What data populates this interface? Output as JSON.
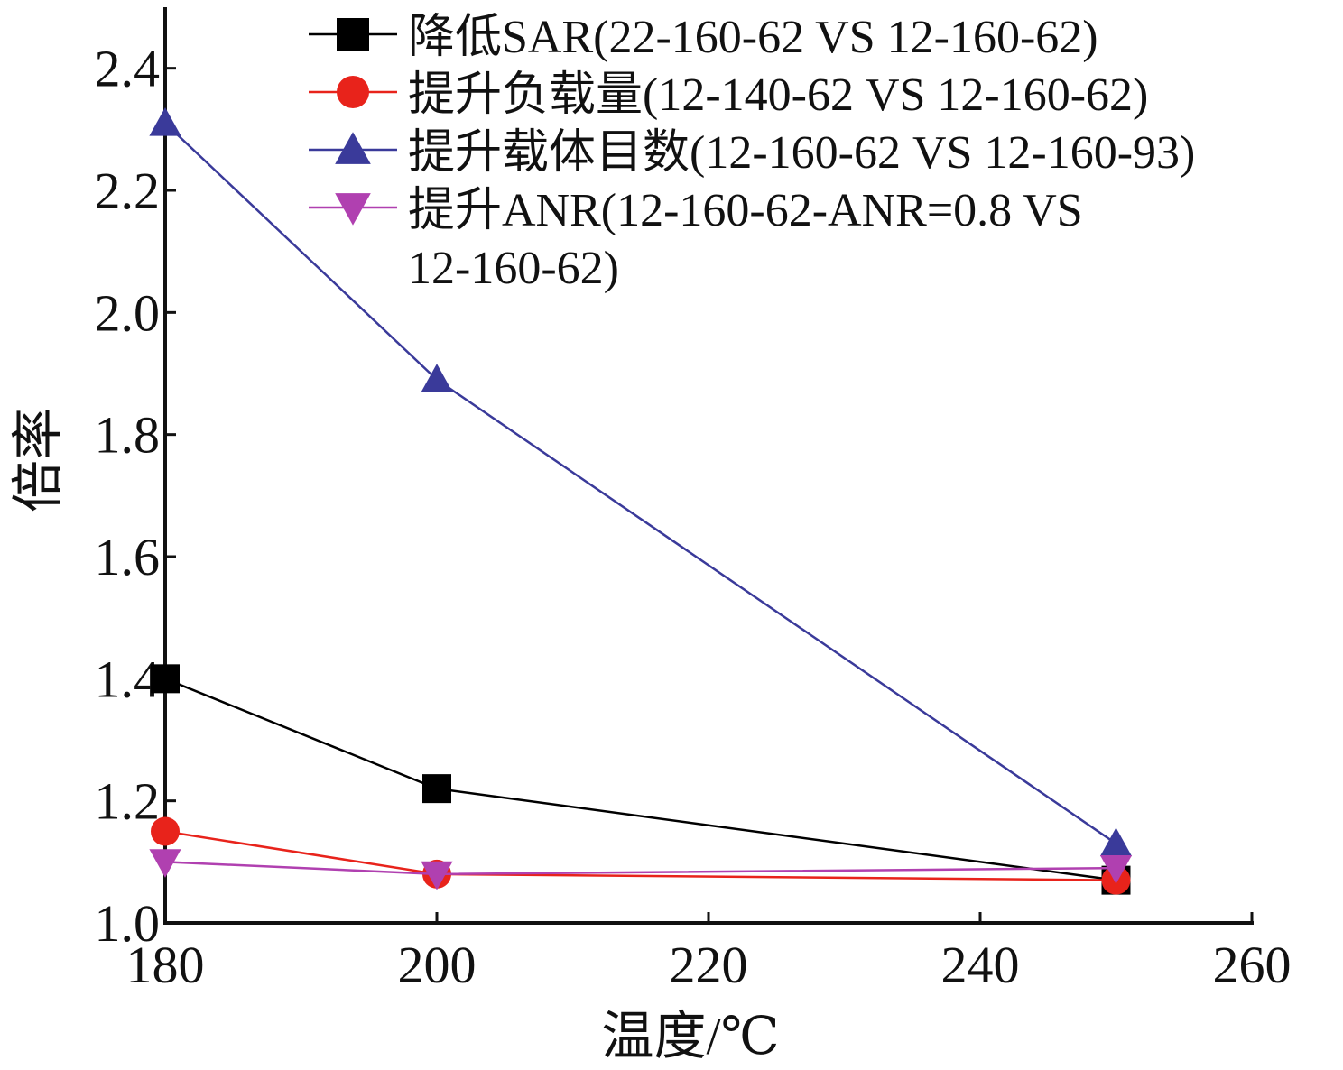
{
  "chart_data": {
    "type": "line",
    "xlabel": "温度/℃",
    "ylabel": "倍率",
    "xlim": [
      180,
      260
    ],
    "ylim": [
      1.0,
      2.5
    ],
    "x_ticks": [
      "180",
      "200",
      "220",
      "240",
      "260"
    ],
    "y_ticks": [
      "1.0",
      "1.2",
      "1.4",
      "1.6",
      "1.8",
      "2.0",
      "2.2",
      "2.4"
    ],
    "grid": false,
    "legend_position": "top-right",
    "series": [
      {
        "name": "降低SAR(22-160-62 VS 12-160-62)",
        "color": "#000000",
        "marker": "square",
        "x": [
          180,
          200,
          250
        ],
        "y": [
          1.4,
          1.22,
          1.07
        ]
      },
      {
        "name": "提升负载量(12-140-62 VS  12-160-62)",
        "color": "#e8231b",
        "marker": "circle",
        "x": [
          180,
          200,
          250
        ],
        "y": [
          1.15,
          1.08,
          1.07
        ]
      },
      {
        "name": "提升载体目数(12-160-62 VS  12-160-93)",
        "color": "#3a3a9a",
        "marker": "triangle-up",
        "x": [
          180,
          200,
          250
        ],
        "y": [
          2.31,
          1.89,
          1.13
        ]
      },
      {
        "name": "提升ANR(12-160-62-ANR=0.8 VS\n12-160-62)",
        "color": "#b040b0",
        "marker": "triangle-down",
        "x": [
          180,
          200,
          250
        ],
        "y": [
          1.1,
          1.08,
          1.09
        ]
      }
    ]
  }
}
